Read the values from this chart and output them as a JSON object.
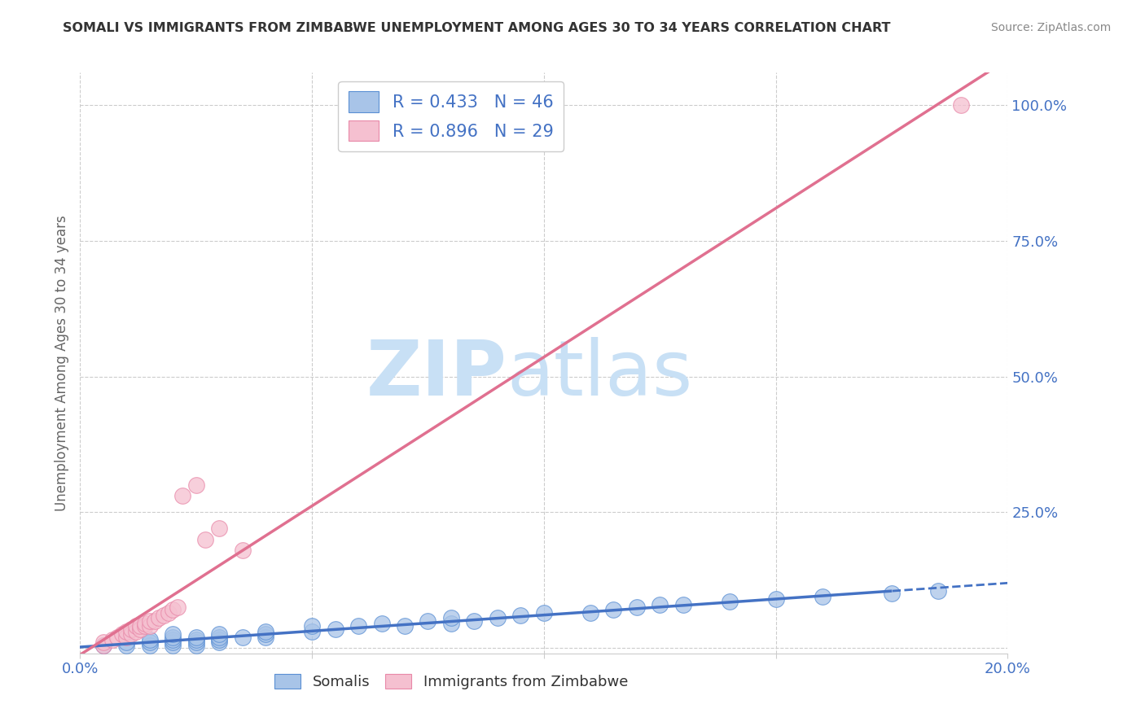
{
  "title": "SOMALI VS IMMIGRANTS FROM ZIMBABWE UNEMPLOYMENT AMONG AGES 30 TO 34 YEARS CORRELATION CHART",
  "source": "Source: ZipAtlas.com",
  "ylabel": "Unemployment Among Ages 30 to 34 years",
  "xlim": [
    0.0,
    0.2
  ],
  "ylim": [
    -0.01,
    1.06
  ],
  "x_ticks": [
    0.0,
    0.05,
    0.1,
    0.15,
    0.2
  ],
  "x_tick_labels": [
    "0.0%",
    "",
    "",
    "",
    "20.0%"
  ],
  "y_ticks": [
    0.0,
    0.25,
    0.5,
    0.75,
    1.0
  ],
  "y_tick_labels": [
    "",
    "25.0%",
    "50.0%",
    "75.0%",
    "100.0%"
  ],
  "somali_R": 0.433,
  "somali_N": 46,
  "zimbabwe_R": 0.896,
  "zimbabwe_N": 29,
  "blue_color": "#a8c4e8",
  "blue_edge_color": "#5a8fd4",
  "blue_line_color": "#4472c4",
  "pink_color": "#f5c0d0",
  "pink_edge_color": "#e888a8",
  "pink_line_color": "#e07090",
  "somali_x": [
    0.005,
    0.01,
    0.01,
    0.015,
    0.015,
    0.015,
    0.02,
    0.02,
    0.02,
    0.02,
    0.02,
    0.025,
    0.025,
    0.025,
    0.025,
    0.03,
    0.03,
    0.03,
    0.03,
    0.035,
    0.04,
    0.04,
    0.04,
    0.05,
    0.05,
    0.055,
    0.06,
    0.065,
    0.07,
    0.075,
    0.08,
    0.08,
    0.085,
    0.09,
    0.095,
    0.1,
    0.11,
    0.115,
    0.12,
    0.125,
    0.13,
    0.14,
    0.15,
    0.16,
    0.175,
    0.185
  ],
  "somali_y": [
    0.005,
    0.005,
    0.01,
    0.005,
    0.01,
    0.015,
    0.005,
    0.01,
    0.015,
    0.02,
    0.025,
    0.005,
    0.01,
    0.015,
    0.02,
    0.01,
    0.015,
    0.02,
    0.025,
    0.02,
    0.02,
    0.025,
    0.03,
    0.03,
    0.04,
    0.035,
    0.04,
    0.045,
    0.04,
    0.05,
    0.045,
    0.055,
    0.05,
    0.055,
    0.06,
    0.065,
    0.065,
    0.07,
    0.075,
    0.08,
    0.08,
    0.085,
    0.09,
    0.095,
    0.1,
    0.105
  ],
  "zimbabwe_x": [
    0.005,
    0.005,
    0.007,
    0.008,
    0.009,
    0.01,
    0.01,
    0.011,
    0.011,
    0.012,
    0.012,
    0.013,
    0.013,
    0.014,
    0.014,
    0.015,
    0.015,
    0.016,
    0.017,
    0.018,
    0.019,
    0.02,
    0.021,
    0.022,
    0.025,
    0.027,
    0.03,
    0.035,
    0.19
  ],
  "zimbabwe_y": [
    0.005,
    0.01,
    0.015,
    0.02,
    0.025,
    0.02,
    0.03,
    0.025,
    0.035,
    0.03,
    0.04,
    0.035,
    0.04,
    0.04,
    0.045,
    0.04,
    0.05,
    0.05,
    0.055,
    0.06,
    0.065,
    0.07,
    0.075,
    0.28,
    0.3,
    0.2,
    0.22,
    0.18,
    1.0
  ],
  "background_color": "#ffffff",
  "grid_color": "#cccccc",
  "watermark_zip": "ZIP",
  "watermark_atlas": "atlas",
  "watermark_color": "#c8e0f5"
}
